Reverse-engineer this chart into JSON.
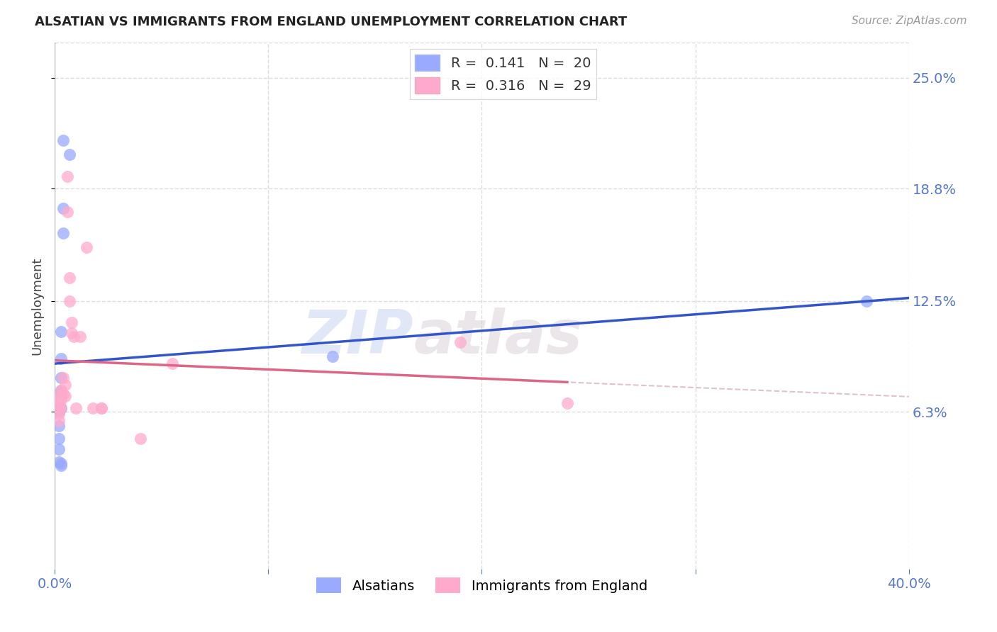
{
  "title": "ALSATIAN VS IMMIGRANTS FROM ENGLAND UNEMPLOYMENT CORRELATION CHART",
  "source": "Source: ZipAtlas.com",
  "ylabel": "Unemployment",
  "ytick_labels": [
    "25.0%",
    "18.8%",
    "12.5%",
    "6.3%"
  ],
  "ytick_values": [
    0.25,
    0.188,
    0.125,
    0.063
  ],
  "xlim": [
    0.0,
    0.4
  ],
  "ylim": [
    -0.025,
    0.27
  ],
  "legend_label1": "Alsatians",
  "legend_label2": "Immigrants from England",
  "color_blue": "#99aaff",
  "color_pink": "#ffaacc",
  "color_blue_line": "#3355cc",
  "color_pink_line": "#dd6688",
  "color_dashed": "#ddbbcc",
  "watermark_zip": "ZIP",
  "watermark_atlas": "atlas",
  "alsatians_x": [
    0.004,
    0.007,
    0.004,
    0.004,
    0.003,
    0.003,
    0.003,
    0.003,
    0.003,
    0.003,
    0.002,
    0.002,
    0.002,
    0.002,
    0.002,
    0.002,
    0.003,
    0.003,
    0.13,
    0.38
  ],
  "alsatians_y": [
    0.215,
    0.207,
    0.177,
    0.163,
    0.108,
    0.093,
    0.082,
    0.075,
    0.073,
    0.065,
    0.065,
    0.063,
    0.055,
    0.048,
    0.042,
    0.035,
    0.034,
    0.033,
    0.094,
    0.125
  ],
  "immigrants_x": [
    0.002,
    0.002,
    0.002,
    0.002,
    0.002,
    0.003,
    0.003,
    0.003,
    0.004,
    0.004,
    0.005,
    0.005,
    0.006,
    0.006,
    0.007,
    0.007,
    0.008,
    0.008,
    0.009,
    0.01,
    0.012,
    0.015,
    0.018,
    0.022,
    0.022,
    0.04,
    0.19,
    0.24,
    0.055
  ],
  "immigrants_y": [
    0.072,
    0.068,
    0.065,
    0.062,
    0.058,
    0.075,
    0.07,
    0.065,
    0.082,
    0.073,
    0.078,
    0.072,
    0.195,
    0.175,
    0.138,
    0.125,
    0.113,
    0.107,
    0.105,
    0.065,
    0.105,
    0.155,
    0.065,
    0.065,
    0.065,
    0.048,
    0.102,
    0.068,
    0.09
  ],
  "background_color": "#ffffff",
  "grid_color": "#dddddd",
  "title_color": "#222222",
  "source_color": "#999999",
  "axis_label_color": "#5577cc",
  "ylabel_color": "#444444"
}
